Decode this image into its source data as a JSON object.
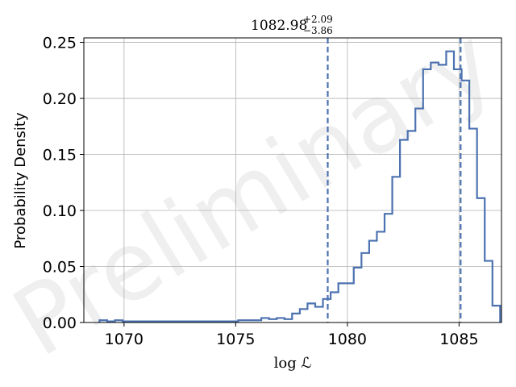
{
  "watermark": "Preliminary",
  "chart_data": {
    "type": "histogram",
    "xlabel": "log ℒ",
    "ylabel": "Probability Density",
    "xlim": [
      1068.2,
      1086.9
    ],
    "ylim": [
      0,
      0.254
    ],
    "xticks": [
      1070,
      1075,
      1080,
      1085
    ],
    "yticks": [
      0.0,
      0.05,
      0.1,
      0.15,
      0.2,
      0.25
    ],
    "ytick_labels": [
      "0.00",
      "0.05",
      "0.10",
      "0.15",
      "0.20",
      "0.25"
    ],
    "grid": true,
    "color": "#4c72b0",
    "bins": {
      "start": 1068.9,
      "width": 0.345,
      "values": [
        0.002,
        0.001,
        0.002,
        0.001,
        0.001,
        0.001,
        0.001,
        0.001,
        0.001,
        0.001,
        0.001,
        0.001,
        0.001,
        0.001,
        0.001,
        0.001,
        0.001,
        0.001,
        0.002,
        0.002,
        0.002,
        0.004,
        0.003,
        0.004,
        0.003,
        0.008,
        0.012,
        0.017,
        0.014,
        0.021,
        0.027,
        0.035,
        0.035,
        0.049,
        0.062,
        0.073,
        0.081,
        0.097,
        0.13,
        0.163,
        0.171,
        0.191,
        0.226,
        0.232,
        0.23,
        0.242,
        0.226,
        0.216,
        0.173,
        0.111,
        0.055,
        0.015
      ]
    },
    "markers": [
      {
        "x": 1079.12,
        "style": "dashed"
      },
      {
        "x": 1085.07,
        "style": "dashed"
      }
    ],
    "annotation": {
      "value": "1082.98",
      "upper": "+2.09",
      "lower": "−3.86"
    }
  }
}
